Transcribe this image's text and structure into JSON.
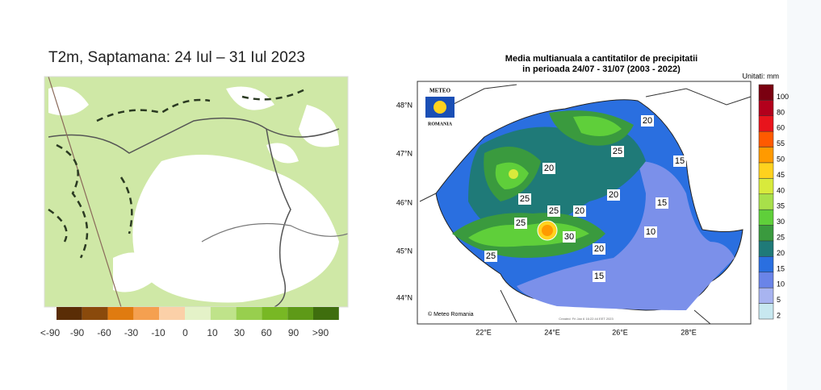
{
  "left_panel": {
    "title": "T2m, Saptamana: 24 Iul – 31 Iul 2023",
    "legend": [
      {
        "label": "<-90",
        "color": "#5a2d06"
      },
      {
        "label": "-90",
        "color": "#8a4a0c"
      },
      {
        "label": "-60",
        "color": "#e07b10"
      },
      {
        "label": "-30",
        "color": "#f5a050"
      },
      {
        "label": "-10",
        "color": "#fbd0a8"
      },
      {
        "label": "0",
        "color": "#e4f2c8"
      },
      {
        "label": "10",
        "color": "#bfe38a"
      },
      {
        "label": "30",
        "color": "#98cf4e"
      },
      {
        "label": "60",
        "color": "#78b824"
      },
      {
        "label": "90",
        "color": "#5e9a18"
      },
      {
        "label": ">90",
        "color": "#3f6e0e"
      }
    ]
  },
  "right_panel": {
    "title_line1": "Media multianuala a cantitatilor de precipitatii",
    "title_line2": "in perioada 24/07 - 31/07 (2003 - 2022)",
    "units": "Unitati: mm",
    "logo_top": "METEO",
    "logo_bottom": "ROMANIA",
    "copyright": "© Meteo Romania",
    "created": "Created: Fri Jan 6 16:22:44 EET 2023",
    "lat_labels": [
      "48°N",
      "47°N",
      "46°N",
      "45°N",
      "44°N"
    ],
    "lon_labels": [
      "22°E",
      "24°E",
      "26°E",
      "28°E"
    ],
    "colorbar": [
      {
        "label": "100",
        "color": "#7a0010"
      },
      {
        "label": "80",
        "color": "#b3001c"
      },
      {
        "label": "60",
        "color": "#e8141c"
      },
      {
        "label": "55",
        "color": "#ff5a00"
      },
      {
        "label": "50",
        "color": "#ff9a00"
      },
      {
        "label": "45",
        "color": "#ffd21e"
      },
      {
        "label": "40",
        "color": "#d8ea3c"
      },
      {
        "label": "35",
        "color": "#a8e04a"
      },
      {
        "label": "30",
        "color": "#5fcf3a"
      },
      {
        "label": "25",
        "color": "#3a9a3e"
      },
      {
        "label": "20",
        "color": "#1f7a78"
      },
      {
        "label": "15",
        "color": "#2a6fe0"
      },
      {
        "label": "10",
        "color": "#6a84e8"
      },
      {
        "label": "5",
        "color": "#a8b4f0"
      },
      {
        "label": "2",
        "color": "#c8e8f0"
      }
    ],
    "contour_labels": [
      "20",
      "25",
      "25",
      "20",
      "15",
      "20",
      "25",
      "25",
      "20",
      "30",
      "15",
      "10",
      "25",
      "20",
      "15"
    ]
  }
}
